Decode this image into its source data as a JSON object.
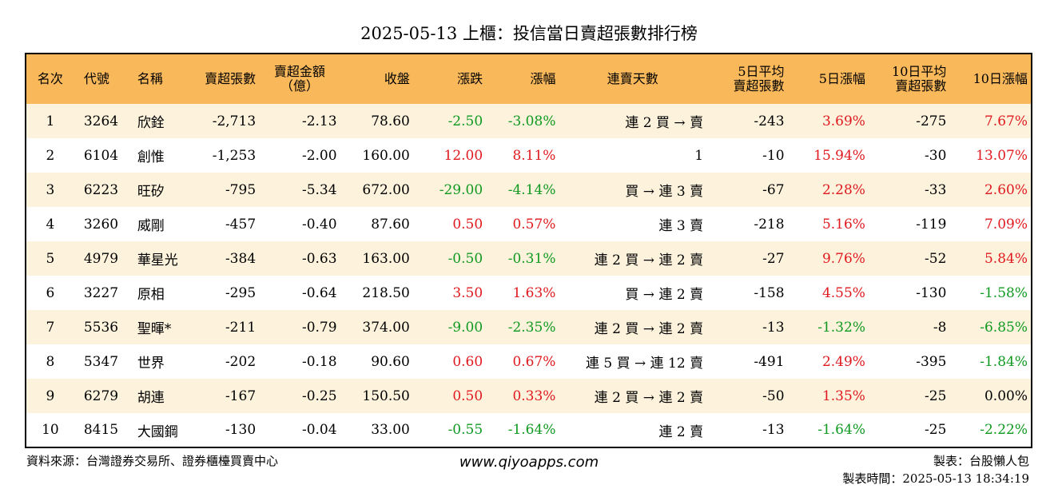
{
  "title": "2025-05-13 上櫃：投信當日賣超張數排行榜",
  "colors": {
    "header_bg": "#f9b95b",
    "stripe_bg": "#fdf3dd",
    "up": "#e0191f",
    "down": "#109920"
  },
  "table": {
    "headers": {
      "rank": "名次",
      "code": "代號",
      "name": "名稱",
      "sell_shares": "賣超張數",
      "sell_amount_1": "賣超金額",
      "sell_amount_2": "（億）",
      "close": "收盤",
      "change": "漲跌",
      "change_pct": "漲幅",
      "streak": "連賣天數",
      "avg5_1": "5日平均",
      "avg5_2": "賣超張數",
      "pct5": "5日漲幅",
      "avg10_1": "10日平均",
      "avg10_2": "賣超張數",
      "pct10": "10日漲幅"
    },
    "rows": [
      {
        "rank": "1",
        "code": "3264",
        "name": "欣銓",
        "sell_shares": "-2,713",
        "sell_amount": "-2.13",
        "close": "78.60",
        "change": "-2.50",
        "change_pct": "-3.08%",
        "streak": "連 2 買 → 賣",
        "avg5": "-243",
        "pct5": "3.69%",
        "avg10": "-275",
        "pct10": "7.67%"
      },
      {
        "rank": "2",
        "code": "6104",
        "name": "創惟",
        "sell_shares": "-1,253",
        "sell_amount": "-2.00",
        "close": "160.00",
        "change": "12.00",
        "change_pct": "8.11%",
        "streak": "1",
        "avg5": "-10",
        "pct5": "15.94%",
        "avg10": "-30",
        "pct10": "13.07%"
      },
      {
        "rank": "3",
        "code": "6223",
        "name": "旺矽",
        "sell_shares": "-795",
        "sell_amount": "-5.34",
        "close": "672.00",
        "change": "-29.00",
        "change_pct": "-4.14%",
        "streak": "買 → 連 3 賣",
        "avg5": "-67",
        "pct5": "2.28%",
        "avg10": "-33",
        "pct10": "2.60%"
      },
      {
        "rank": "4",
        "code": "3260",
        "name": "威剛",
        "sell_shares": "-457",
        "sell_amount": "-0.40",
        "close": "87.60",
        "change": "0.50",
        "change_pct": "0.57%",
        "streak": "連 3 賣",
        "avg5": "-218",
        "pct5": "5.16%",
        "avg10": "-119",
        "pct10": "7.09%"
      },
      {
        "rank": "5",
        "code": "4979",
        "name": "華星光",
        "sell_shares": "-384",
        "sell_amount": "-0.63",
        "close": "163.00",
        "change": "-0.50",
        "change_pct": "-0.31%",
        "streak": "連 2 買 → 連 2 賣",
        "avg5": "-27",
        "pct5": "9.76%",
        "avg10": "-52",
        "pct10": "5.84%"
      },
      {
        "rank": "6",
        "code": "3227",
        "name": "原相",
        "sell_shares": "-295",
        "sell_amount": "-0.64",
        "close": "218.50",
        "change": "3.50",
        "change_pct": "1.63%",
        "streak": "買 → 連 2 賣",
        "avg5": "-158",
        "pct5": "4.55%",
        "avg10": "-130",
        "pct10": "-1.58%"
      },
      {
        "rank": "7",
        "code": "5536",
        "name": "聖暉*",
        "sell_shares": "-211",
        "sell_amount": "-0.79",
        "close": "374.00",
        "change": "-9.00",
        "change_pct": "-2.35%",
        "streak": "連 2 買 → 連 2 賣",
        "avg5": "-13",
        "pct5": "-1.32%",
        "avg10": "-8",
        "pct10": "-6.85%"
      },
      {
        "rank": "8",
        "code": "5347",
        "name": "世界",
        "sell_shares": "-202",
        "sell_amount": "-0.18",
        "close": "90.60",
        "change": "0.60",
        "change_pct": "0.67%",
        "streak": "連 5 買 → 連 12 賣",
        "avg5": "-491",
        "pct5": "2.49%",
        "avg10": "-395",
        "pct10": "-1.84%"
      },
      {
        "rank": "9",
        "code": "6279",
        "name": "胡連",
        "sell_shares": "-167",
        "sell_amount": "-0.25",
        "close": "150.50",
        "change": "0.50",
        "change_pct": "0.33%",
        "streak": "連 2 買 → 連 2 賣",
        "avg5": "-50",
        "pct5": "1.35%",
        "avg10": "-25",
        "pct10": "0.00%"
      },
      {
        "rank": "10",
        "code": "8415",
        "name": "大國鋼",
        "sell_shares": "-130",
        "sell_amount": "-0.04",
        "close": "33.00",
        "change": "-0.55",
        "change_pct": "-1.64%",
        "streak": "連 2 賣",
        "avg5": "-13",
        "pct5": "-1.64%",
        "avg10": "-25",
        "pct10": "-2.22%"
      }
    ]
  },
  "footer": {
    "source": "資料來源：台灣證券交易所、證券櫃檯買賣中心",
    "website": "www.qiyoapps.com",
    "maker": "製表：台股懶人包",
    "made_time": "製表時間：2025-05-13 18:34:19"
  }
}
